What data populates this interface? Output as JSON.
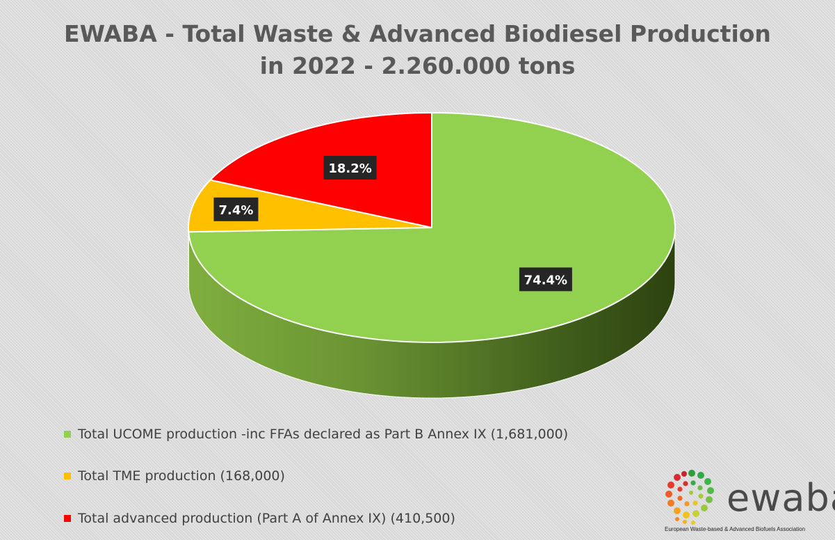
{
  "chart_data": {
    "type": "pie",
    "title_lines": [
      "EWABA - Total Waste & Advanced Biodiesel Production",
      "in 2022 - 2.260.000 tons"
    ],
    "slices": [
      {
        "label": "Total UCOME production -inc FFAs declared as Part B Annex IX (1,681,000)",
        "value": 74.4,
        "data_label": "74.4%",
        "color": "#92d050"
      },
      {
        "label": "Total TME production (168,000)",
        "value": 7.4,
        "data_label": "7.4%",
        "color": "#ffc000"
      },
      {
        "label": "Total advanced production (Part A of Annex IX) (410,500)",
        "value": 18.2,
        "data_label": "18.2%",
        "color": "#ff0000"
      }
    ],
    "legend_position": "bottom-left"
  },
  "logo": {
    "wordmark": "ewaba",
    "tagline": "European Waste-based & Advanced Biofuels Association"
  }
}
